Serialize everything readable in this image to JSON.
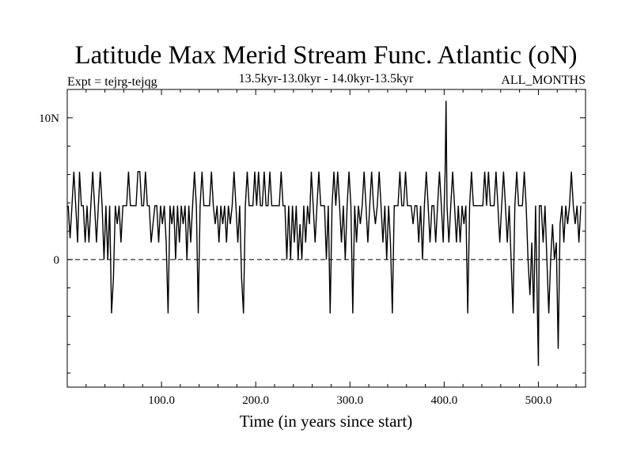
{
  "chart_data": {
    "type": "line",
    "title": "Latitude Max Merid Stream Func. Atlantic (oN)",
    "experiment_label": "Expt = tejrg-tejqg",
    "period_label": "13.5kyr-13.0kyr - 14.0kyr-13.5kyr",
    "season_label": "ALL_MONTHS",
    "xlabel": "Time (in years since start)",
    "ylabel": "",
    "xlim": [
      0,
      550
    ],
    "ylim": [
      -9,
      12
    ],
    "x_ticks": [
      100,
      200,
      300,
      400,
      500
    ],
    "x_tick_labels": [
      "100.0",
      "200.0",
      "300.0",
      "400.0",
      "500.0"
    ],
    "y_ticks": [
      0,
      10
    ],
    "y_tick_labels": [
      "0",
      "10N"
    ],
    "zero_line": "dashed",
    "grid": false,
    "series": [
      {
        "values": [
          [
            1,
            3.8
          ],
          [
            3,
            1.5
          ],
          [
            5,
            3.8
          ],
          [
            7,
            6.2
          ],
          [
            9,
            3.8
          ],
          [
            11,
            1.2
          ],
          [
            13,
            6.2
          ],
          [
            15,
            3.8
          ],
          [
            17,
            3.8
          ],
          [
            19,
            1.2
          ],
          [
            21,
            3.8
          ],
          [
            23,
            1.2
          ],
          [
            25,
            3.8
          ],
          [
            27,
            6.2
          ],
          [
            29,
            3.8
          ],
          [
            31,
            1.2
          ],
          [
            33,
            3.8
          ],
          [
            35,
            6.2
          ],
          [
            37,
            3.8
          ],
          [
            39,
            0
          ],
          [
            41,
            3.8
          ],
          [
            43,
            0
          ],
          [
            45,
            3.8
          ],
          [
            47,
            -3.8
          ],
          [
            49,
            -1.3
          ],
          [
            51,
            3.8
          ],
          [
            53,
            2.5
          ],
          [
            55,
            3.8
          ],
          [
            57,
            1.2
          ],
          [
            59,
            3.8
          ],
          [
            61,
            3.8
          ],
          [
            63,
            3.8
          ],
          [
            65,
            6.2
          ],
          [
            67,
            3.8
          ],
          [
            69,
            3.8
          ],
          [
            71,
            3.8
          ],
          [
            73,
            3.8
          ],
          [
            75,
            6.2
          ],
          [
            77,
            6.2
          ],
          [
            79,
            3.8
          ],
          [
            81,
            3.8
          ],
          [
            83,
            6.2
          ],
          [
            85,
            3.8
          ],
          [
            87,
            3.8
          ],
          [
            89,
            1.2
          ],
          [
            91,
            2.5
          ],
          [
            93,
            3.8
          ],
          [
            95,
            3.8
          ],
          [
            97,
            1.2
          ],
          [
            99,
            3.8
          ],
          [
            101,
            2.5
          ],
          [
            103,
            3.8
          ],
          [
            105,
            1.2
          ],
          [
            107,
            -3.8
          ],
          [
            109,
            3.8
          ],
          [
            111,
            2.5
          ],
          [
            113,
            3.8
          ],
          [
            115,
            0
          ],
          [
            117,
            3.8
          ],
          [
            119,
            1.2
          ],
          [
            121,
            3.8
          ],
          [
            123,
            2.5
          ],
          [
            125,
            3.8
          ],
          [
            127,
            0
          ],
          [
            129,
            3.8
          ],
          [
            131,
            1.2
          ],
          [
            133,
            3.8
          ],
          [
            135,
            6.2
          ],
          [
            137,
            3.8
          ],
          [
            139,
            -3.8
          ],
          [
            141,
            3.8
          ],
          [
            143,
            6.2
          ],
          [
            145,
            3.8
          ],
          [
            147,
            3.8
          ],
          [
            149,
            3.8
          ],
          [
            151,
            3.8
          ],
          [
            153,
            6.2
          ],
          [
            155,
            3.8
          ],
          [
            157,
            2.5
          ],
          [
            159,
            3.8
          ],
          [
            161,
            1.2
          ],
          [
            163,
            3.8
          ],
          [
            165,
            2.5
          ],
          [
            167,
            3.8
          ],
          [
            169,
            1.2
          ],
          [
            171,
            3.8
          ],
          [
            173,
            2.5
          ],
          [
            175,
            3.8
          ],
          [
            177,
            6.2
          ],
          [
            179,
            3.8
          ],
          [
            181,
            1.2
          ],
          [
            183,
            3.8
          ],
          [
            185,
            -1.3
          ],
          [
            187,
            -3.8
          ],
          [
            189,
            3.8
          ],
          [
            191,
            6.2
          ],
          [
            193,
            3.8
          ],
          [
            195,
            3.8
          ],
          [
            197,
            3.8
          ],
          [
            199,
            6.2
          ],
          [
            201,
            3.8
          ],
          [
            203,
            6.2
          ],
          [
            205,
            3.8
          ],
          [
            207,
            3.8
          ],
          [
            209,
            6.2
          ],
          [
            211,
            3.8
          ],
          [
            213,
            3.8
          ],
          [
            215,
            6.2
          ],
          [
            217,
            3.8
          ],
          [
            219,
            3.8
          ],
          [
            221,
            3.8
          ],
          [
            223,
            3.8
          ],
          [
            225,
            3.8
          ],
          [
            227,
            6.2
          ],
          [
            229,
            3.8
          ],
          [
            231,
            3.8
          ],
          [
            233,
            0
          ],
          [
            235,
            3.8
          ],
          [
            237,
            0
          ],
          [
            239,
            3.8
          ],
          [
            241,
            1.2
          ],
          [
            243,
            3.8
          ],
          [
            245,
            0
          ],
          [
            247,
            2.5
          ],
          [
            249,
            0
          ],
          [
            251,
            3.8
          ],
          [
            253,
            1.2
          ],
          [
            255,
            3.8
          ],
          [
            257,
            2.5
          ],
          [
            259,
            6.2
          ],
          [
            261,
            3.8
          ],
          [
            263,
            1.2
          ],
          [
            265,
            3.8
          ],
          [
            267,
            6.2
          ],
          [
            269,
            3.8
          ],
          [
            271,
            3.8
          ],
          [
            273,
            3.8
          ],
          [
            275,
            0
          ],
          [
            277,
            3.8
          ],
          [
            279,
            -3.8
          ],
          [
            281,
            3.8
          ],
          [
            283,
            6.2
          ],
          [
            285,
            3.8
          ],
          [
            287,
            6.2
          ],
          [
            289,
            3.8
          ],
          [
            291,
            1.2
          ],
          [
            293,
            3.8
          ],
          [
            295,
            0
          ],
          [
            297,
            3.8
          ],
          [
            299,
            6.2
          ],
          [
            301,
            3.8
          ],
          [
            303,
            -3.8
          ],
          [
            305,
            3.8
          ],
          [
            307,
            1.2
          ],
          [
            309,
            3.8
          ],
          [
            311,
            2.5
          ],
          [
            313,
            3.8
          ],
          [
            315,
            6.2
          ],
          [
            317,
            3.8
          ],
          [
            319,
            1.2
          ],
          [
            321,
            3.8
          ],
          [
            323,
            6.2
          ],
          [
            325,
            3.8
          ],
          [
            327,
            2.5
          ],
          [
            329,
            3.8
          ],
          [
            331,
            6.2
          ],
          [
            333,
            3.8
          ],
          [
            335,
            1.2
          ],
          [
            337,
            3.8
          ],
          [
            339,
            0
          ],
          [
            341,
            3.8
          ],
          [
            343,
            1.2
          ],
          [
            345,
            -3.8
          ],
          [
            347,
            3.8
          ],
          [
            349,
            3.8
          ],
          [
            351,
            3.8
          ],
          [
            353,
            6.2
          ],
          [
            355,
            3.8
          ],
          [
            357,
            3.8
          ],
          [
            359,
            6.2
          ],
          [
            361,
            3.8
          ],
          [
            363,
            3.8
          ],
          [
            365,
            3.8
          ],
          [
            367,
            2.5
          ],
          [
            369,
            3.8
          ],
          [
            371,
            3.8
          ],
          [
            373,
            1.2
          ],
          [
            375,
            3.8
          ],
          [
            377,
            0
          ],
          [
            379,
            3.8
          ],
          [
            381,
            6.2
          ],
          [
            383,
            3.8
          ],
          [
            385,
            1.2
          ],
          [
            387,
            3.8
          ],
          [
            389,
            3.8
          ],
          [
            391,
            1.2
          ],
          [
            393,
            3.8
          ],
          [
            395,
            6.2
          ],
          [
            397,
            3.8
          ],
          [
            399,
            1.2
          ],
          [
            401,
            6.2
          ],
          [
            402,
            11.2
          ],
          [
            403,
            3.8
          ],
          [
            405,
            1.2
          ],
          [
            407,
            3.8
          ],
          [
            409,
            6.2
          ],
          [
            411,
            3.8
          ],
          [
            413,
            1.2
          ],
          [
            415,
            3.8
          ],
          [
            417,
            1.2
          ],
          [
            419,
            3.8
          ],
          [
            421,
            2.5
          ],
          [
            423,
            3.8
          ],
          [
            425,
            -3.8
          ],
          [
            427,
            3.8
          ],
          [
            429,
            6.2
          ],
          [
            431,
            3.8
          ],
          [
            433,
            3.8
          ],
          [
            435,
            3.8
          ],
          [
            437,
            3.8
          ],
          [
            439,
            3.8
          ],
          [
            441,
            3.8
          ],
          [
            443,
            6.2
          ],
          [
            445,
            3.8
          ],
          [
            447,
            6.2
          ],
          [
            449,
            3.8
          ],
          [
            451,
            3.8
          ],
          [
            453,
            3.8
          ],
          [
            455,
            6.2
          ],
          [
            457,
            3.8
          ],
          [
            459,
            1.2
          ],
          [
            461,
            3.8
          ],
          [
            463,
            6.2
          ],
          [
            465,
            3.8
          ],
          [
            467,
            1.2
          ],
          [
            469,
            3.8
          ],
          [
            471,
            0
          ],
          [
            473,
            -3.8
          ],
          [
            475,
            3.8
          ],
          [
            477,
            6.2
          ],
          [
            479,
            3.8
          ],
          [
            481,
            3.8
          ],
          [
            483,
            3.8
          ],
          [
            485,
            6.2
          ],
          [
            487,
            3.8
          ],
          [
            489,
            0
          ],
          [
            491,
            -2.5
          ],
          [
            493,
            1.2
          ],
          [
            495,
            -3.8
          ],
          [
            497,
            3.8
          ],
          [
            499,
            -3.8
          ],
          [
            500,
            -7.5
          ],
          [
            501,
            3.8
          ],
          [
            503,
            3.8
          ],
          [
            505,
            1.2
          ],
          [
            507,
            3.8
          ],
          [
            509,
            0
          ],
          [
            511,
            -3.8
          ],
          [
            513,
            0
          ],
          [
            515,
            2.5
          ],
          [
            517,
            0
          ],
          [
            519,
            1.2
          ],
          [
            521,
            -6.3
          ],
          [
            523,
            2.5
          ],
          [
            525,
            3.8
          ],
          [
            527,
            1.2
          ],
          [
            529,
            3.8
          ],
          [
            531,
            2.5
          ],
          [
            533,
            3.8
          ],
          [
            535,
            6.2
          ],
          [
            537,
            3.8
          ],
          [
            539,
            2.5
          ],
          [
            541,
            3.8
          ],
          [
            543,
            1.2
          ],
          [
            545,
            3.8
          ]
        ]
      }
    ]
  }
}
